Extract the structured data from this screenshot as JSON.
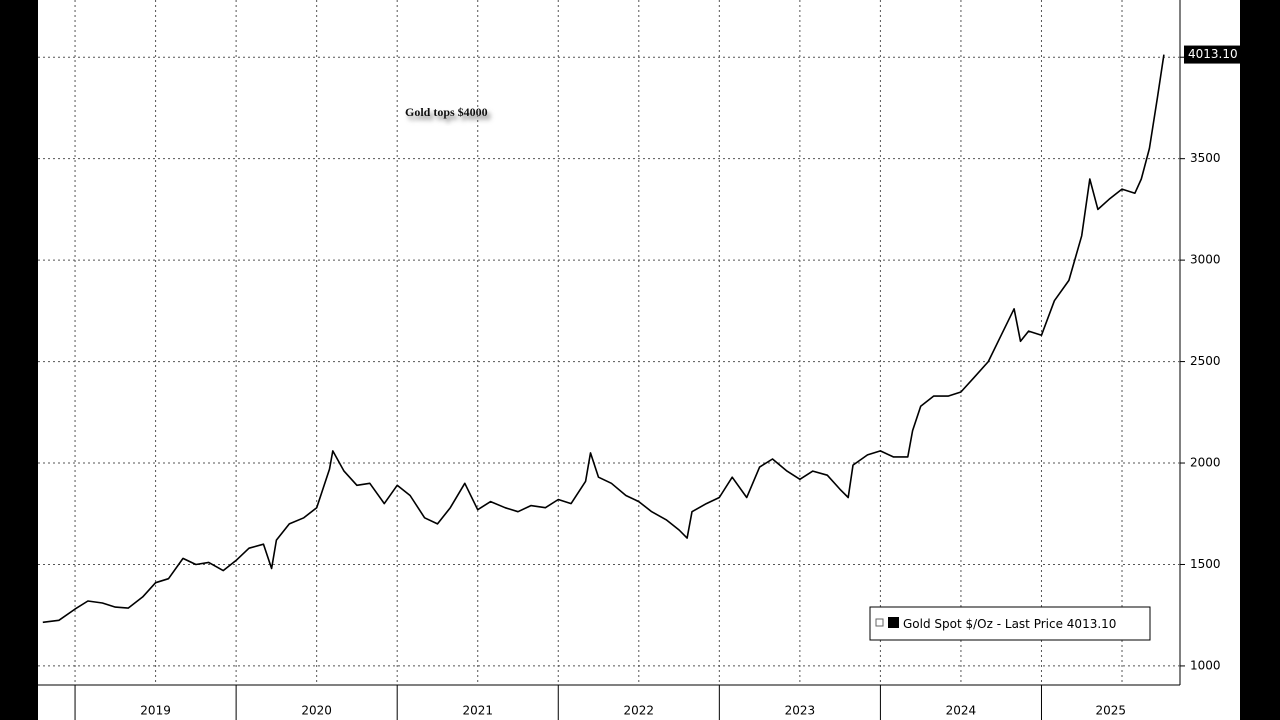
{
  "chart_data": {
    "type": "line",
    "annotation": "Gold tops $4000",
    "series": [
      {
        "name": "Gold Spot $/Oz - Last Price",
        "color": "#000000",
        "x": [
          2018.8,
          2018.9,
          2019.0,
          2019.08,
          2019.17,
          2019.25,
          2019.33,
          2019.42,
          2019.5,
          2019.58,
          2019.67,
          2019.75,
          2019.83,
          2019.92,
          2020.0,
          2020.08,
          2020.17,
          2020.22,
          2020.25,
          2020.33,
          2020.42,
          2020.5,
          2020.58,
          2020.6,
          2020.67,
          2020.75,
          2020.83,
          2020.92,
          2021.0,
          2021.08,
          2021.17,
          2021.25,
          2021.33,
          2021.42,
          2021.5,
          2021.58,
          2021.67,
          2021.75,
          2021.83,
          2021.92,
          2022.0,
          2022.08,
          2022.17,
          2022.2,
          2022.25,
          2022.33,
          2022.42,
          2022.5,
          2022.58,
          2022.67,
          2022.75,
          2022.8,
          2022.83,
          2022.92,
          2023.0,
          2023.08,
          2023.17,
          2023.25,
          2023.33,
          2023.42,
          2023.5,
          2023.58,
          2023.67,
          2023.75,
          2023.8,
          2023.83,
          2023.92,
          2024.0,
          2024.08,
          2024.17,
          2024.2,
          2024.25,
          2024.33,
          2024.42,
          2024.5,
          2024.58,
          2024.67,
          2024.75,
          2024.83,
          2024.87,
          2024.92,
          2025.0,
          2025.08,
          2025.17,
          2025.25,
          2025.3,
          2025.35,
          2025.42,
          2025.5,
          2025.58,
          2025.62,
          2025.67,
          2025.72,
          2025.76
        ],
        "values": [
          1215,
          1225,
          1280,
          1320,
          1310,
          1290,
          1285,
          1340,
          1410,
          1430,
          1530,
          1500,
          1510,
          1470,
          1520,
          1580,
          1600,
          1480,
          1620,
          1700,
          1730,
          1780,
          1970,
          2060,
          1960,
          1890,
          1900,
          1800,
          1890,
          1840,
          1730,
          1700,
          1780,
          1900,
          1770,
          1810,
          1780,
          1760,
          1790,
          1780,
          1820,
          1800,
          1910,
          2050,
          1930,
          1900,
          1840,
          1810,
          1760,
          1720,
          1670,
          1630,
          1760,
          1800,
          1830,
          1930,
          1830,
          1980,
          2020,
          1960,
          1920,
          1960,
          1940,
          1870,
          1830,
          1990,
          2040,
          2060,
          2030,
          2030,
          2160,
          2280,
          2330,
          2330,
          2350,
          2420,
          2500,
          2630,
          2760,
          2600,
          2650,
          2630,
          2800,
          2900,
          3120,
          3400,
          3250,
          3300,
          3350,
          3330,
          3400,
          3550,
          3800,
          4013.1
        ]
      }
    ],
    "last_price": {
      "value": 4013.1,
      "label": "4013.10"
    },
    "xlim": [
      2018.77,
      2025.86
    ],
    "xticks": [
      2019,
      2020,
      2021,
      2022,
      2023,
      2024,
      2025
    ],
    "x_minor_grid": [
      2019.5,
      2020.5,
      2021.5,
      2022.5,
      2023.5,
      2024.5,
      2025.5
    ],
    "ylim": [
      906,
      4282
    ],
    "yticks": [
      1000,
      1500,
      2000,
      2500,
      3000,
      3500
    ],
    "y_minor_grid": [
      4000
    ],
    "grid": true,
    "legend": "lower right"
  }
}
